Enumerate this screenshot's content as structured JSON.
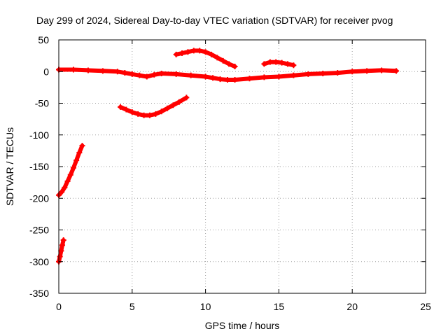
{
  "chart_data": {
    "type": "scatter",
    "title": "Day 299 of 2024, Sidereal Day-to-day VTEC variation (SDTVAR) for receiver pvog",
    "xlabel": "GPS time / hours",
    "ylabel": "SDTVAR / TECUs",
    "xlim": [
      0,
      25
    ],
    "ylim": [
      -350,
      50
    ],
    "xticks": [
      "0",
      "5",
      "10",
      "15",
      "20",
      "25"
    ],
    "yticks": [
      "-350",
      "-300",
      "-250",
      "-200",
      "-150",
      "-100",
      "-50",
      "0",
      "50"
    ],
    "grid": true,
    "marker_color": "#ff0000",
    "series": [
      {
        "x": [
          0.0,
          1.0,
          2.0,
          3.0,
          4.0,
          4.5,
          5.0,
          5.5,
          6.0,
          6.5,
          7.0,
          8.0,
          9.0,
          10.0,
          10.5,
          11.0,
          11.5,
          12.0,
          13.0,
          14.0,
          15.0,
          16.0,
          17.0,
          18.0,
          19.0,
          20.0,
          21.0,
          22.0,
          23.0
        ],
        "y": [
          3,
          3,
          2,
          1,
          0,
          -2,
          -4,
          -6,
          -8,
          -5,
          -3,
          -4,
          -6,
          -8,
          -10,
          -12,
          -13,
          -13,
          -11,
          -9,
          -8,
          -6,
          -4,
          -3,
          -2,
          0,
          1,
          2,
          1
        ]
      },
      {
        "x": [
          4.2,
          4.6,
          5.0,
          5.4,
          5.8,
          6.2,
          6.6,
          7.0,
          7.4,
          7.8,
          8.2,
          8.7
        ],
        "y": [
          -56,
          -60,
          -64,
          -67,
          -69,
          -69,
          -67,
          -63,
          -58,
          -53,
          -48,
          -41
        ]
      },
      {
        "x": [
          8.0,
          8.4,
          8.8,
          9.2,
          9.6,
          10.0,
          10.4,
          10.8,
          11.2,
          11.6,
          12.0
        ],
        "y": [
          27,
          29,
          31,
          33,
          33,
          31,
          27,
          22,
          17,
          12,
          8
        ]
      },
      {
        "x": [
          14.0,
          14.4,
          14.8,
          15.2,
          15.6,
          16.0
        ],
        "y": [
          12,
          15,
          15,
          14,
          12,
          10
        ]
      },
      {
        "x": [
          0.0,
          0.2,
          0.4,
          0.6,
          0.8,
          1.0,
          1.2,
          1.4,
          1.6
        ],
        "y": [
          -195,
          -190,
          -183,
          -173,
          -163,
          -152,
          -140,
          -128,
          -117
        ]
      },
      {
        "x": [
          0.0,
          0.08,
          0.16,
          0.24,
          0.32
        ],
        "y": [
          -300,
          -292,
          -283,
          -274,
          -266
        ]
      }
    ]
  }
}
